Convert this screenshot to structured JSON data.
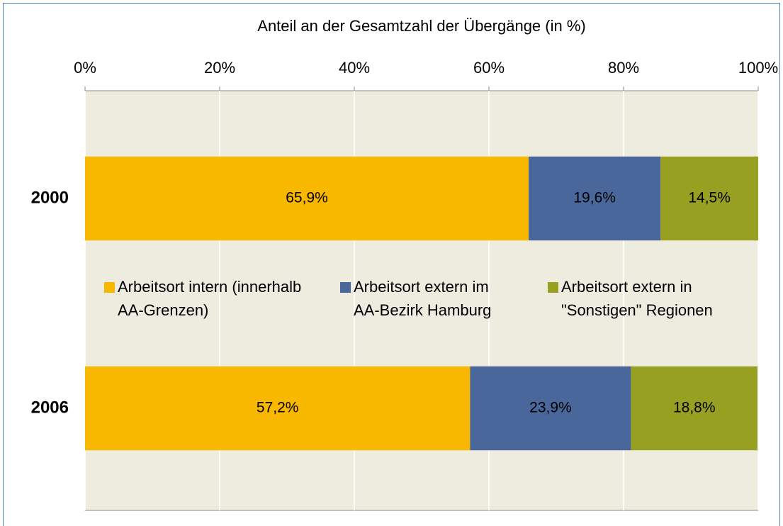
{
  "chart_data": {
    "type": "stacked_barh",
    "x_label": "Anteil an der Gesamtzahl der Übergänge (in %)",
    "categories": [
      "2000",
      "2006"
    ],
    "series": [
      {
        "name": "Arbeitsort intern (innerhalb AA-Grenzen)",
        "color": "#f9b800",
        "values": [
          65.9,
          57.2
        ],
        "value_labels": [
          "65,9%",
          "57,2%"
        ]
      },
      {
        "name": "Arbeitsort extern im AA-Bezirk Hamburg",
        "color": "#4a679b",
        "values": [
          19.6,
          23.9
        ],
        "value_labels": [
          "19,6%",
          "23,9%"
        ]
      },
      {
        "name": "Arbeitsort extern in \"Sonstigen\" Regionen",
        "color": "#98a022",
        "values": [
          14.5,
          18.8
        ],
        "value_labels": [
          "14,5%",
          "18,8%"
        ]
      }
    ],
    "xlim": [
      0,
      100
    ],
    "xticks": [
      {
        "value": 0,
        "label": "0%"
      },
      {
        "value": 20,
        "label": "20%"
      },
      {
        "value": 40,
        "label": "40%"
      },
      {
        "value": 60,
        "label": "60%"
      },
      {
        "value": 80,
        "label": "80%"
      },
      {
        "value": 100,
        "label": "100%"
      }
    ],
    "grid": true,
    "legend": "center",
    "background": "#eeebdf"
  }
}
